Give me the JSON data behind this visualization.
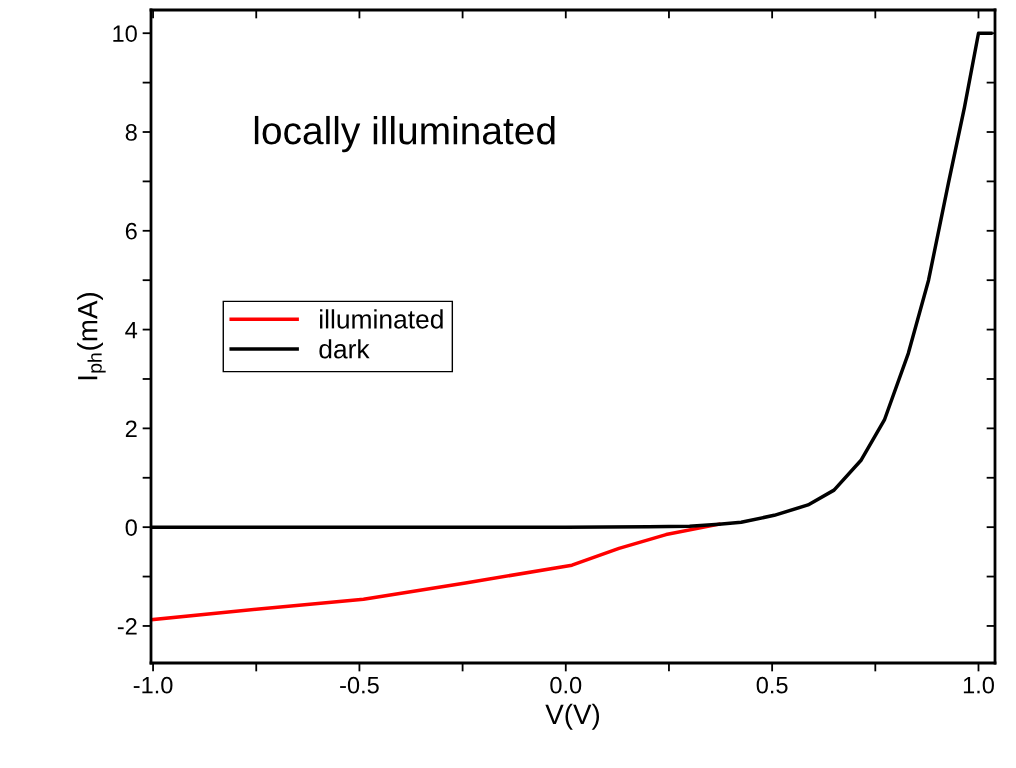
{
  "chart_data": {
    "type": "line",
    "xlabel": "V(V)",
    "ylabel": "I$_{ph}$(mA)",
    "annotations": [
      "locally illuminated"
    ],
    "xlim": [
      -1.005,
      1.04
    ],
    "ylim": [
      -2.75,
      10.47
    ],
    "xticks": [
      {
        "value": -1.0,
        "label": "-1.0"
      },
      {
        "value": -0.75,
        "label": null
      },
      {
        "value": -0.5,
        "label": "-0.5"
      },
      {
        "value": -0.25,
        "label": null
      },
      {
        "value": 0.0,
        "label": "0.0"
      },
      {
        "value": 0.25,
        "label": null
      },
      {
        "value": 0.5,
        "label": "0.5"
      },
      {
        "value": 0.75,
        "label": null
      },
      {
        "value": 1.0,
        "label": "1.0"
      }
    ],
    "yticks": [
      {
        "value": -2,
        "label": "-2"
      },
      {
        "value": -1,
        "label": null
      },
      0,
      {
        "value": 1,
        "label": null
      },
      2,
      {
        "value": 3,
        "label": null
      },
      4,
      {
        "value": 5,
        "label": null
      },
      6,
      {
        "value": 7,
        "label": null
      },
      8,
      {
        "value": 9,
        "label": null
      },
      10
    ],
    "grid": false,
    "legend": "center left",
    "line_style": "solid",
    "marker": "none",
    "series": [
      {
        "name": "illuminated",
        "color": "#ff0000",
        "x": [
          -1.0,
          -0.75,
          -0.49,
          -0.243,
          0.015,
          0.129,
          0.243,
          0.371
        ],
        "values": [
          -1.87,
          -1.66,
          -1.46,
          -1.13,
          -0.77,
          -0.43,
          -0.15,
          0.06
        ]
      },
      {
        "name": "dark",
        "color": "#000000",
        "x": [
          -1.0,
          -0.5,
          0.0,
          0.2,
          0.3,
          0.371,
          0.425,
          0.505,
          0.587,
          0.65,
          0.716,
          0.772,
          0.83,
          0.879,
          0.927,
          0.966,
          1.0,
          1.03
        ],
        "values": [
          0,
          0,
          0,
          0.01,
          0.02,
          0.06,
          0.1,
          0.24,
          0.45,
          0.75,
          1.36,
          2.17,
          3.52,
          5.0,
          6.96,
          8.5,
          10,
          10
        ]
      }
    ]
  }
}
